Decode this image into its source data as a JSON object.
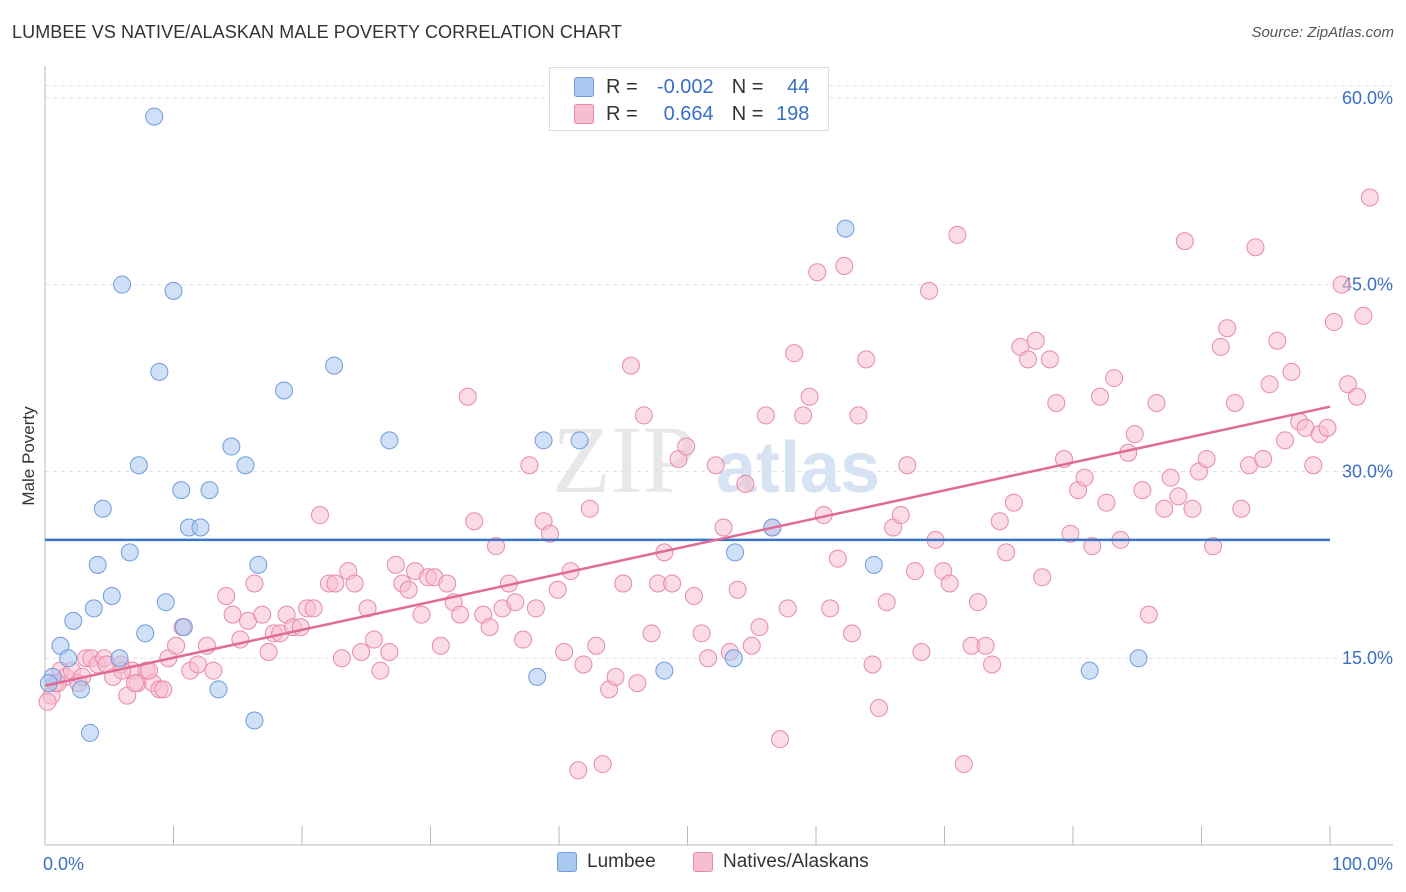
{
  "title": "LUMBEE VS NATIVE/ALASKAN MALE POVERTY CORRELATION CHART",
  "source": "Source: ZipAtlas.com",
  "watermark": {
    "zip": "ZIP",
    "atlas": "atlas"
  },
  "legend": {
    "r_label": "R =",
    "n_label": "N =",
    "rows": [
      {
        "r": "-0.002",
        "n": "44",
        "color": "#a9c8f0",
        "border": "#6f9be0"
      },
      {
        "r": "0.664",
        "n": "198",
        "color": "#f7bed0",
        "border": "#e88aa8"
      }
    ]
  },
  "chart_data": {
    "type": "scatter",
    "xlabel": "",
    "ylabel": "Male Poverty",
    "xlim": [
      0,
      100
    ],
    "ylim": [
      0,
      62
    ],
    "x_tick_labels": [
      "0.0%",
      "100.0%"
    ],
    "y_ticks": [
      15,
      30,
      45,
      60
    ],
    "y_tick_labels": [
      "15.0%",
      "30.0%",
      "45.0%",
      "60.0%"
    ],
    "grid": true,
    "series": [
      {
        "name": "Lumbee",
        "color": "#a9c8f0",
        "stroke": "#6f9be0",
        "line_color": "#3a74c9",
        "trend": {
          "x": [
            0,
            100
          ],
          "y": [
            24.5,
            24.5
          ]
        },
        "points": [
          [
            0.6,
            13.5
          ],
          [
            1.2,
            16
          ],
          [
            1.8,
            15
          ],
          [
            2.2,
            18
          ],
          [
            2.8,
            12.5
          ],
          [
            3.5,
            9
          ],
          [
            3.8,
            19
          ],
          [
            4.1,
            22.5
          ],
          [
            4.5,
            27
          ],
          [
            5.2,
            20
          ],
          [
            5.8,
            15
          ],
          [
            6.6,
            23.5
          ],
          [
            7.3,
            30.5
          ],
          [
            7.8,
            17
          ],
          [
            8.5,
            58.5
          ],
          [
            8.9,
            38
          ],
          [
            9.4,
            19.5
          ],
          [
            10,
            44.5
          ],
          [
            10.6,
            28.5
          ],
          [
            10.8,
            17.5
          ],
          [
            11.2,
            25.5
          ],
          [
            12.1,
            25.5
          ],
          [
            12.8,
            28.5
          ],
          [
            13.5,
            12.5
          ],
          [
            14.5,
            32
          ],
          [
            15.6,
            30.5
          ],
          [
            16.3,
            10
          ],
          [
            16.6,
            22.5
          ],
          [
            18.6,
            36.5
          ],
          [
            6,
            45
          ],
          [
            22.5,
            38.5
          ],
          [
            26.8,
            32.5
          ],
          [
            38.3,
            13.5
          ],
          [
            38.8,
            32.5
          ],
          [
            41.6,
            32.5
          ],
          [
            48.2,
            14
          ],
          [
            53.6,
            15
          ],
          [
            53.7,
            23.5
          ],
          [
            56.6,
            25.5
          ],
          [
            62.3,
            49.5
          ],
          [
            64.5,
            22.5
          ],
          [
            81.3,
            14
          ],
          [
            85.1,
            15
          ],
          [
            0.3,
            13
          ]
        ]
      },
      {
        "name": "Natives/Alaskans",
        "color": "#f7bed0",
        "stroke": "#e88aa8",
        "line_color": "#e06c94",
        "trend": {
          "x": [
            0,
            100
          ],
          "y": [
            12.8,
            35.2
          ]
        },
        "points": [
          [
            0.5,
            12
          ],
          [
            0.8,
            13
          ],
          [
            1.2,
            14
          ],
          [
            1.6,
            13.5
          ],
          [
            2.1,
            14
          ],
          [
            2.6,
            13
          ],
          [
            3.2,
            15
          ],
          [
            3.6,
            15
          ],
          [
            4.1,
            14.5
          ],
          [
            4.6,
            15
          ],
          [
            5.3,
            13.5
          ],
          [
            5.9,
            14.5
          ],
          [
            6.4,
            12
          ],
          [
            6.8,
            14
          ],
          [
            7.2,
            13
          ],
          [
            7.9,
            14
          ],
          [
            8.4,
            13
          ],
          [
            8.9,
            12.5
          ],
          [
            9.6,
            15
          ],
          [
            10.2,
            16
          ],
          [
            10.7,
            17.5
          ],
          [
            11.3,
            14
          ],
          [
            11.9,
            14.5
          ],
          [
            12.6,
            16
          ],
          [
            13.1,
            14
          ],
          [
            14.1,
            20
          ],
          [
            14.6,
            18.5
          ],
          [
            15.2,
            16.5
          ],
          [
            15.8,
            18
          ],
          [
            16.3,
            21
          ],
          [
            16.9,
            18.5
          ],
          [
            17.4,
            15.5
          ],
          [
            17.8,
            17
          ],
          [
            18.3,
            17
          ],
          [
            18.8,
            18.5
          ],
          [
            19.3,
            17.5
          ],
          [
            19.9,
            17.5
          ],
          [
            20.4,
            19
          ],
          [
            20.9,
            19
          ],
          [
            21.4,
            26.5
          ],
          [
            22.1,
            21
          ],
          [
            22.6,
            21
          ],
          [
            23.1,
            15
          ],
          [
            23.6,
            22
          ],
          [
            24.1,
            21
          ],
          [
            24.6,
            15.5
          ],
          [
            25.1,
            19
          ],
          [
            25.6,
            16.5
          ],
          [
            26.1,
            14
          ],
          [
            26.8,
            15.5
          ],
          [
            27.3,
            22.5
          ],
          [
            27.8,
            21
          ],
          [
            28.3,
            20.5
          ],
          [
            28.8,
            22
          ],
          [
            29.3,
            18.5
          ],
          [
            29.8,
            21.5
          ],
          [
            30.3,
            21.5
          ],
          [
            30.8,
            16
          ],
          [
            31.3,
            21
          ],
          [
            31.8,
            19.5
          ],
          [
            32.3,
            18.5
          ],
          [
            32.9,
            36
          ],
          [
            33.4,
            26
          ],
          [
            34.1,
            18.5
          ],
          [
            34.6,
            17.5
          ],
          [
            35.1,
            24
          ],
          [
            35.6,
            19
          ],
          [
            36.1,
            21
          ],
          [
            36.6,
            19.5
          ],
          [
            37.2,
            16.5
          ],
          [
            37.7,
            30.5
          ],
          [
            38.2,
            19
          ],
          [
            38.8,
            26
          ],
          [
            39.3,
            25
          ],
          [
            39.9,
            20.5
          ],
          [
            40.4,
            15.5
          ],
          [
            40.9,
            22
          ],
          [
            41.5,
            6
          ],
          [
            41.9,
            14.5
          ],
          [
            42.4,
            27
          ],
          [
            42.9,
            16
          ],
          [
            43.4,
            6.5
          ],
          [
            43.9,
            12.5
          ],
          [
            44.4,
            13.5
          ],
          [
            45,
            21
          ],
          [
            45.6,
            38.5
          ],
          [
            46.1,
            13
          ],
          [
            46.6,
            34.5
          ],
          [
            47.2,
            17
          ],
          [
            47.7,
            21
          ],
          [
            48.2,
            23.5
          ],
          [
            48.8,
            21
          ],
          [
            49.3,
            31
          ],
          [
            49.9,
            32
          ],
          [
            50.5,
            20
          ],
          [
            51.1,
            17
          ],
          [
            51.6,
            15
          ],
          [
            52.2,
            30.5
          ],
          [
            52.8,
            25.5
          ],
          [
            53.3,
            15.5
          ],
          [
            53.9,
            20.5
          ],
          [
            54.5,
            29
          ],
          [
            55,
            16
          ],
          [
            55.6,
            17.5
          ],
          [
            56.1,
            34.5
          ],
          [
            56.6,
            25.5
          ],
          [
            57.2,
            8.5
          ],
          [
            57.8,
            19
          ],
          [
            58.3,
            39.5
          ],
          [
            59,
            34.5
          ],
          [
            59.5,
            36
          ],
          [
            60.1,
            46
          ],
          [
            60.6,
            26.5
          ],
          [
            61.1,
            19
          ],
          [
            61.7,
            23
          ],
          [
            62.2,
            46.5
          ],
          [
            62.8,
            17
          ],
          [
            63.3,
            34.5
          ],
          [
            63.9,
            39
          ],
          [
            64.4,
            14.5
          ],
          [
            64.9,
            11
          ],
          [
            65.5,
            19.5
          ],
          [
            66,
            25.5
          ],
          [
            66.6,
            26.5
          ],
          [
            67.1,
            30.5
          ],
          [
            67.7,
            22
          ],
          [
            68.2,
            15.5
          ],
          [
            68.8,
            44.5
          ],
          [
            69.3,
            24.5
          ],
          [
            69.9,
            22
          ],
          [
            70.4,
            21
          ],
          [
            71,
            49
          ],
          [
            71.5,
            6.5
          ],
          [
            72.1,
            16
          ],
          [
            72.6,
            19.5
          ],
          [
            73.2,
            16
          ],
          [
            73.7,
            14.5
          ],
          [
            74.3,
            26
          ],
          [
            74.8,
            23.5
          ],
          [
            75.4,
            27.5
          ],
          [
            75.9,
            40
          ],
          [
            76.5,
            39
          ],
          [
            77.1,
            40.5
          ],
          [
            77.6,
            21.5
          ],
          [
            78.2,
            39
          ],
          [
            78.7,
            35.5
          ],
          [
            79.3,
            31
          ],
          [
            79.8,
            25
          ],
          [
            80.4,
            28.5
          ],
          [
            80.9,
            29.5
          ],
          [
            81.5,
            24
          ],
          [
            82.1,
            36
          ],
          [
            82.6,
            27.5
          ],
          [
            83.2,
            37.5
          ],
          [
            83.7,
            24.5
          ],
          [
            84.3,
            31.5
          ],
          [
            84.8,
            33
          ],
          [
            85.4,
            28.5
          ],
          [
            85.9,
            18.5
          ],
          [
            86.5,
            35.5
          ],
          [
            87.1,
            27
          ],
          [
            87.6,
            29.5
          ],
          [
            88.2,
            28
          ],
          [
            88.7,
            48.5
          ],
          [
            89.3,
            27
          ],
          [
            89.8,
            30
          ],
          [
            90.4,
            31
          ],
          [
            90.9,
            24
          ],
          [
            91.5,
            40
          ],
          [
            92,
            41.5
          ],
          [
            92.6,
            35.5
          ],
          [
            93.1,
            27
          ],
          [
            93.7,
            30.5
          ],
          [
            94.2,
            48
          ],
          [
            94.8,
            31
          ],
          [
            95.3,
            37
          ],
          [
            95.9,
            40.5
          ],
          [
            96.5,
            32.5
          ],
          [
            97,
            38
          ],
          [
            97.6,
            34
          ],
          [
            98.1,
            33.5
          ],
          [
            98.7,
            30.5
          ],
          [
            99.2,
            33
          ],
          [
            99.8,
            33.5
          ],
          [
            100.3,
            42
          ],
          [
            100.9,
            45
          ],
          [
            101.4,
            37
          ],
          [
            102.1,
            36
          ],
          [
            102.6,
            42.5
          ],
          [
            103.1,
            52
          ],
          [
            0.2,
            11.5
          ],
          [
            1,
            13
          ],
          [
            2.9,
            13.5
          ],
          [
            4.8,
            14.5
          ],
          [
            6,
            14
          ],
          [
            7,
            13
          ],
          [
            8.1,
            14
          ],
          [
            9.2,
            12.5
          ]
        ]
      }
    ]
  }
}
